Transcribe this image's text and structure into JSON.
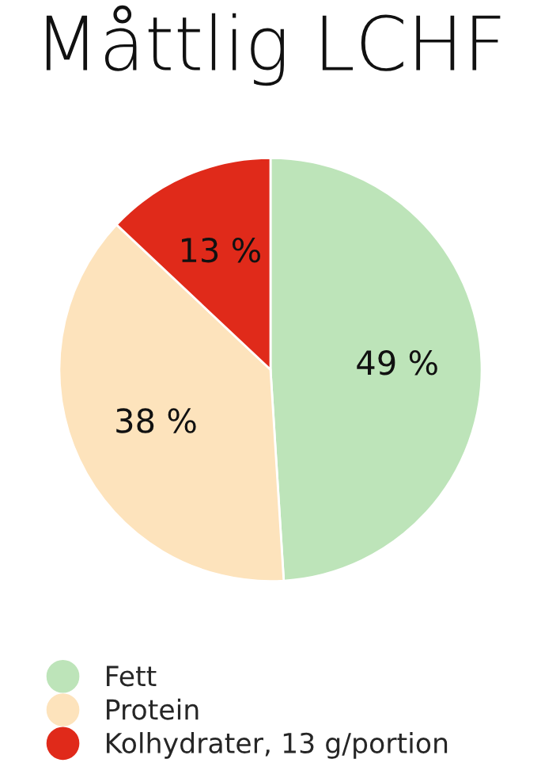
{
  "chart_data": {
    "type": "pie",
    "title": "Måttlig LCHF",
    "categories": [
      "Fett",
      "Protein",
      "Kolhydrater, 13 g/portion"
    ],
    "values": [
      49,
      38,
      13
    ],
    "value_labels": [
      "49 %",
      "38 %",
      "13 %"
    ],
    "colors": [
      "#bde4b9",
      "#fde3bc",
      "#e02a1a"
    ],
    "legend": "bottom"
  }
}
